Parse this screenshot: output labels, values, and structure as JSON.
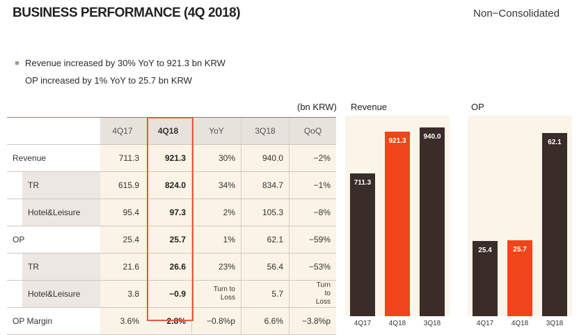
{
  "header": {
    "title": "BUSINESS PERFORMANCE (4Q 2018)",
    "scope": "Non−Consolidated"
  },
  "bullets": [
    "Revenue increased by 30% YoY to 921.3 bn KRW",
    "OP increased by  1% YoY to 25.7 bn KRW"
  ],
  "table": {
    "unit": "(bn KRW)",
    "columns": [
      "4Q17",
      "4Q18",
      "YoY",
      "3Q18",
      "QoQ"
    ],
    "rows": [
      {
        "label": "Revenue",
        "cells": [
          "711.3",
          "921.3",
          "30%",
          "940.0",
          "−2%"
        ]
      },
      {
        "label": "TR",
        "cells": [
          "615.9",
          "824.0",
          "34%",
          "834.7",
          "−1%"
        ]
      },
      {
        "label": "Hotel&Leisure",
        "cells": [
          "95.4",
          "97.3",
          "2%",
          "105.3",
          "−8%"
        ]
      },
      {
        "label": "OP",
        "cells": [
          "25.4",
          "25.7",
          "1%",
          "62.1",
          "−59%"
        ]
      },
      {
        "label": "TR",
        "cells": [
          "21.6",
          "26.6",
          "23%",
          "56.4",
          "−53%"
        ]
      },
      {
        "label": "Hotel&Leisure",
        "cells": [
          "3.8",
          "−0.9",
          "Turn to Loss",
          "5.7",
          "Turn to Loss"
        ]
      },
      {
        "label": "OP Margin",
        "cells": [
          "3.6%",
          "2.8%",
          "−0.8%p",
          "6.6%",
          "−3.8%p"
        ]
      }
    ]
  },
  "colors": {
    "dark_bar": "#3a2c28",
    "highlight_bar": "#f0451a",
    "highlight_border": "#e7583a",
    "panel_bg": "#fbf5e9"
  },
  "chart_data": [
    {
      "type": "bar",
      "title": "Revenue",
      "categories": [
        "4Q17",
        "4Q18",
        "3Q18"
      ],
      "values": [
        711.3,
        921.3,
        940.0
      ],
      "value_labels": [
        "711.3",
        "921.3",
        "940.0"
      ],
      "highlight_index": 1,
      "ylim": [
        0,
        1000
      ]
    },
    {
      "type": "bar",
      "title": "OP",
      "categories": [
        "4Q17",
        "4Q18",
        "3Q18"
      ],
      "values": [
        25.4,
        25.7,
        62.1
      ],
      "value_labels": [
        "25.4",
        "25.7",
        "62.1"
      ],
      "highlight_index": 1,
      "ylim": [
        0,
        68
      ]
    }
  ]
}
